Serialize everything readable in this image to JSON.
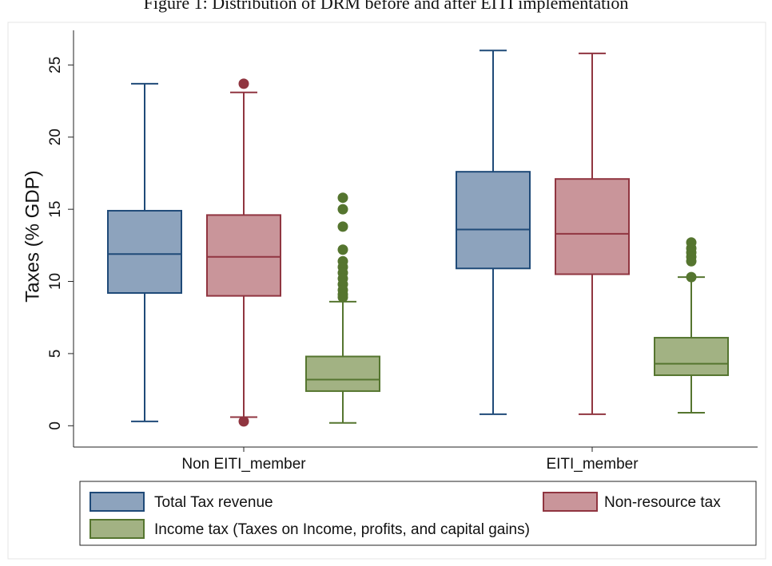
{
  "chart_data": {
    "type": "box",
    "title": "Figure 1: Distribution of DRM before and after EITI implementation",
    "y_label": "Taxes (% GDP)",
    "categories": [
      "Non EITI_member",
      "EITI_member"
    ],
    "ylim": [
      -1.2,
      27.4
    ],
    "yticks": [
      0,
      5,
      10,
      15,
      20,
      25
    ],
    "series": [
      {
        "name": "Total Tax revenue",
        "color": "#8da3bd",
        "edge": "#1f4a78",
        "boxes": [
          {
            "min": 0.3,
            "q1": 9.2,
            "median": 11.9,
            "q3": 14.9,
            "max": 23.7,
            "outliers": []
          },
          {
            "min": 0.8,
            "q1": 10.9,
            "median": 13.6,
            "q3": 17.6,
            "max": 26.0,
            "outliers": []
          }
        ]
      },
      {
        "name": "Non-resource tax",
        "color": "#c9959a",
        "edge": "#903540",
        "boxes": [
          {
            "min": 0.6,
            "q1": 9.0,
            "median": 11.7,
            "q3": 14.6,
            "max": 23.1,
            "outliers": [
              23.7,
              0.3
            ]
          },
          {
            "min": 0.8,
            "q1": 10.5,
            "median": 13.3,
            "q3": 17.1,
            "max": 25.8,
            "outliers": []
          }
        ]
      },
      {
        "name": "Income tax (Taxes on Income, profits, and capital gains)",
        "color": "#a2b283",
        "edge": "#55752f",
        "boxes": [
          {
            "min": 0.2,
            "q1": 2.4,
            "median": 3.2,
            "q3": 4.8,
            "max": 8.6,
            "outliers": [
              15.8,
              15.0,
              13.8,
              12.2,
              11.4,
              11.0,
              10.6,
              10.2,
              9.8,
              9.4,
              9.1,
              8.9
            ]
          },
          {
            "min": 0.9,
            "q1": 3.5,
            "median": 4.3,
            "q3": 6.1,
            "max": 10.3,
            "outliers": [
              12.7,
              12.3,
              12.0,
              11.7,
              11.4,
              10.3
            ]
          }
        ]
      }
    ]
  }
}
